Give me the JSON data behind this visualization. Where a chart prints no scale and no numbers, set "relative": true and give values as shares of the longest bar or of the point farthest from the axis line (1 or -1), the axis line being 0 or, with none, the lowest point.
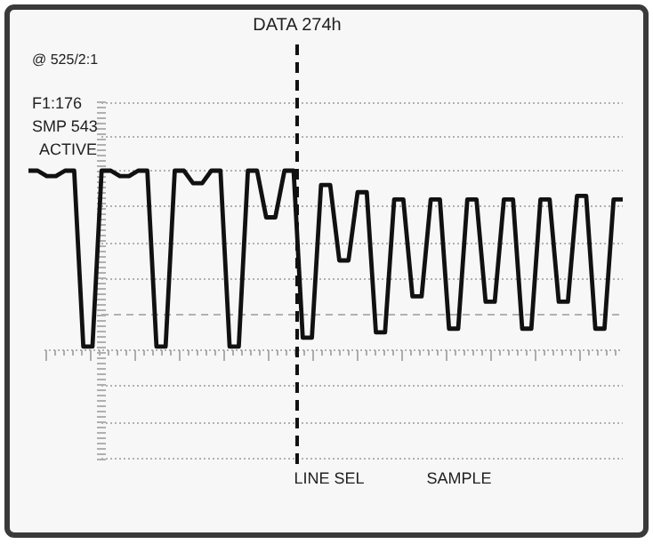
{
  "chart_data": {
    "type": "line",
    "relative": true,
    "grid": true,
    "line_style": "solid",
    "categories": [
      null,
      null,
      null,
      null,
      null,
      null,
      null,
      null,
      null,
      null,
      null,
      null,
      null,
      null,
      null,
      null,
      null,
      null,
      null,
      null,
      null,
      null,
      null,
      null,
      null,
      null,
      null,
      null,
      null,
      null,
      null,
      null,
      null,
      null,
      null,
      null,
      null,
      null,
      null,
      null,
      null,
      null,
      null,
      null,
      null,
      null,
      null,
      null,
      null,
      null,
      null,
      null,
      null,
      null,
      null,
      null,
      null,
      null,
      null,
      null,
      null,
      null,
      null,
      null,
      null,
      null
    ],
    "series": [
      {
        "color": "#111111",
        "values": [
          1,
          1,
          0.97,
          0.97,
          1,
          1,
          0.02,
          0.02,
          1,
          1,
          0.97,
          0.97,
          1,
          1,
          0.02,
          0.02,
          1,
          1,
          0.93,
          0.93,
          1,
          1,
          0.02,
          0.02,
          1,
          1,
          0.74,
          0.74,
          1,
          1,
          0.07,
          0.07,
          0.92,
          0.92,
          0.5,
          0.5,
          0.88,
          0.88,
          0.1,
          0.1,
          0.84,
          0.84,
          0.3,
          0.3,
          0.84,
          0.84,
          0.12,
          0.12,
          0.84,
          0.84,
          0.27,
          0.27,
          0.84,
          0.84,
          0.12,
          0.12,
          0.84,
          0.84,
          0.27,
          0.27,
          0.86,
          0.86,
          0.12,
          0.12,
          0.84,
          0.84
        ]
      }
    ],
    "annotations": [
      "DATA 274h",
      "@ 525/2:1",
      "F1:176",
      "SMP 543",
      "ACTIVE",
      "LINE SEL",
      "SAMPLE"
    ]
  }
}
